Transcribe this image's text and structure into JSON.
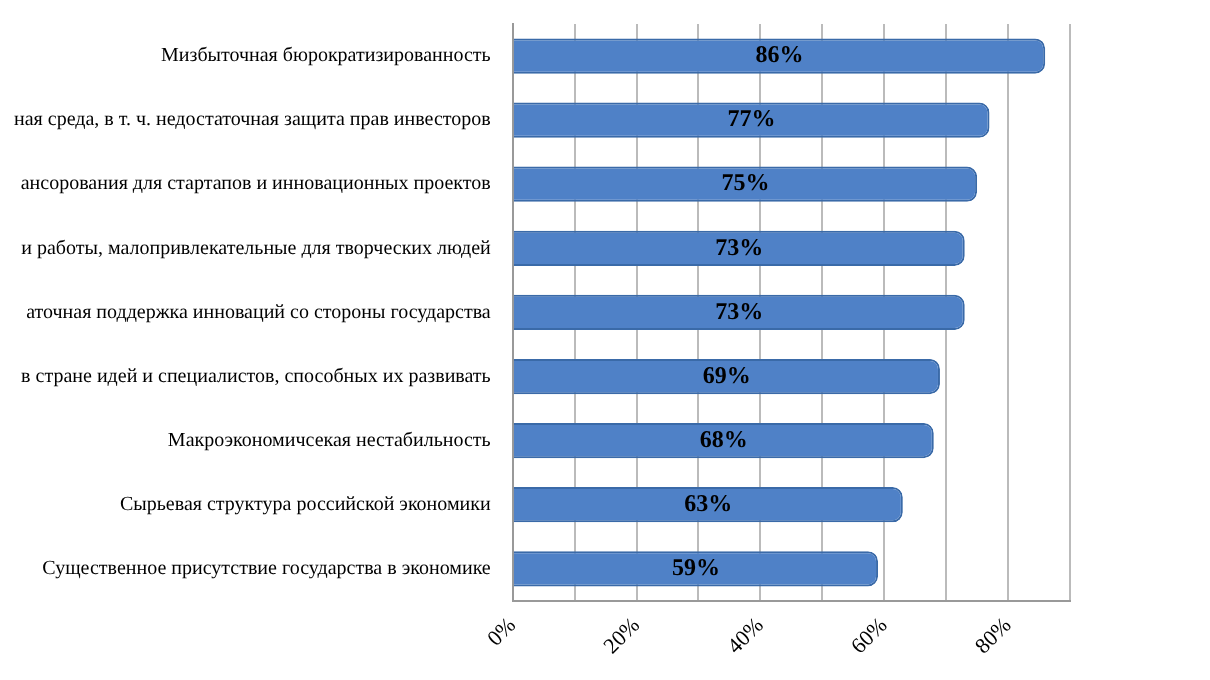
{
  "chart_data": {
    "type": "bar",
    "orientation": "horizontal",
    "categories": [
      "Мизбыточная бюрократизированность",
      "ная среда, в т. ч. недостаточная защита прав инвесторов",
      "ансорования для стартапов и инновационных проектов",
      "и работы, малопривлекательные для творческих людей",
      "аточная поддержка инноваций со стороны государства",
      "в стране идей и специалистов, способных их развивать",
      "Макроэкономичсекая нестабильность",
      "Сырьевая структура российской экономики",
      "Существенное присутствие государства в экономике"
    ],
    "values": [
      86,
      77,
      75,
      73,
      73,
      69,
      68,
      63,
      59
    ],
    "value_labels": [
      "86%",
      "77%",
      "75%",
      "73%",
      "73%",
      "69%",
      "68%",
      "63%",
      "59%"
    ],
    "color": "#4f81c7",
    "xlim": [
      0,
      90
    ],
    "xticks": [
      {
        "value": 0,
        "label": "0%"
      },
      {
        "value": 10,
        "label": null
      },
      {
        "value": 20,
        "label": "20%"
      },
      {
        "value": 30,
        "label": null
      },
      {
        "value": 40,
        "label": "40%"
      },
      {
        "value": 50,
        "label": null
      },
      {
        "value": 60,
        "label": "60%"
      },
      {
        "value": 70,
        "label": null
      },
      {
        "value": 80,
        "label": "80%"
      },
      {
        "value": 90,
        "label": null
      }
    ],
    "grid": "x",
    "legend": false
  }
}
